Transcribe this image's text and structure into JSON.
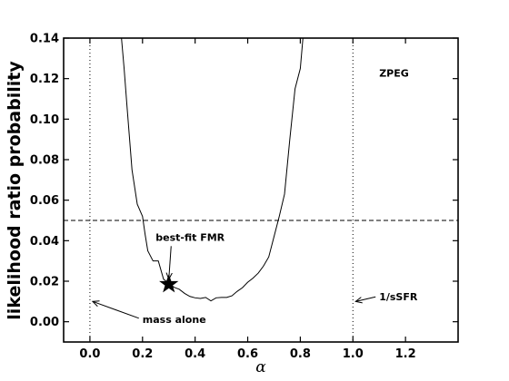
{
  "chart_data": {
    "type": "line",
    "ylabel": "likelihood ratio probability",
    "xlabel": "α",
    "xlim": [
      -0.1,
      1.4
    ],
    "ylim": [
      -0.01,
      0.14
    ],
    "xticks": [
      0.0,
      0.2,
      0.4,
      0.6,
      0.8,
      1.0,
      1.2
    ],
    "xtick_labels": [
      "0.0",
      "0.2",
      "0.4",
      "0.6",
      "0.8",
      "1.0",
      "1.2"
    ],
    "yticks": [
      0.0,
      0.02,
      0.04,
      0.06,
      0.08,
      0.1,
      0.12,
      0.14
    ],
    "ytick_labels": [
      "0.00",
      "0.02",
      "0.04",
      "0.06",
      "0.08",
      "0.10",
      "0.12",
      "0.14"
    ],
    "grid": false,
    "series": [
      {
        "x": [
          0.12,
          0.13,
          0.14,
          0.16,
          0.18,
          0.19,
          0.2,
          0.21,
          0.22,
          0.24,
          0.26,
          0.28,
          0.3,
          0.32,
          0.34,
          0.36,
          0.38,
          0.4,
          0.42,
          0.44,
          0.46,
          0.48,
          0.5,
          0.52,
          0.54,
          0.56,
          0.58,
          0.6,
          0.62,
          0.64,
          0.66,
          0.68,
          0.7,
          0.72,
          0.74,
          0.76,
          0.78,
          0.8,
          0.81
        ],
        "y": [
          0.14,
          0.125,
          0.108,
          0.075,
          0.058,
          0.055,
          0.052,
          0.043,
          0.035,
          0.03,
          0.03,
          0.021,
          0.019,
          0.017,
          0.016,
          0.014,
          0.0125,
          0.0118,
          0.0115,
          0.012,
          0.0103,
          0.0118,
          0.012,
          0.012,
          0.0128,
          0.015,
          0.0168,
          0.0195,
          0.0215,
          0.024,
          0.0275,
          0.032,
          0.042,
          0.052,
          0.063,
          0.09,
          0.115,
          0.125,
          0.14
        ]
      }
    ],
    "threshold_line": {
      "y": 0.05,
      "style": "dashed"
    },
    "vertical_lines": [
      {
        "x": 0.0,
        "style": "dotted"
      },
      {
        "x": 1.0,
        "style": "dotted"
      }
    ],
    "best_fit_marker": {
      "x": 0.3,
      "y": 0.0185,
      "marker": "star"
    },
    "annotations": [
      {
        "text": "best-fit FMR",
        "x": 0.25,
        "y": 0.04,
        "arrow_to": [
          0.3,
          0.021
        ]
      },
      {
        "text": "mass alone",
        "x": 0.2,
        "y": -0.0005,
        "arrow_to": [
          0.0,
          0.01
        ]
      },
      {
        "text": "1/sSFR",
        "x": 1.1,
        "y": 0.0105,
        "arrow_to": [
          1.0,
          0.01
        ]
      },
      {
        "text": "ZPEG",
        "x": 1.1,
        "y": 0.121
      }
    ]
  }
}
